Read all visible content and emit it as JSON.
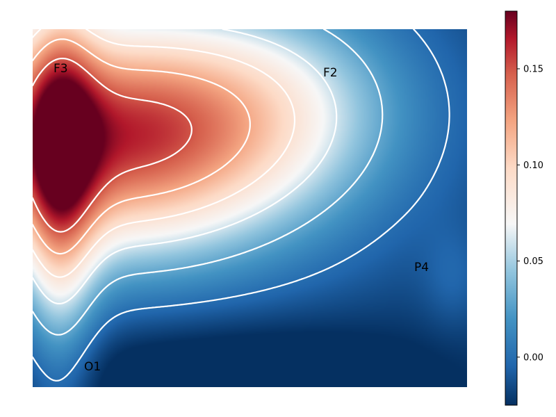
{
  "chart_data": {
    "type": "heatmap",
    "title": "",
    "xlabel": "",
    "ylabel": "",
    "colormap": "RdBu_r",
    "colors": {
      "low": "#053061",
      "mid": "#f7f7f7",
      "high": "#67001f",
      "contour": "#ffffff"
    },
    "colorbar": {
      "range": [
        -0.025,
        0.18
      ],
      "ticks": [
        0.0,
        0.05,
        0.1,
        0.15
      ],
      "tick_labels": [
        "0.00",
        "0.05",
        "0.10",
        "0.15"
      ],
      "placement": "right"
    },
    "annotations": [
      {
        "text": "F3",
        "value": 0.165
      },
      {
        "text": "F2",
        "value": 0.07
      },
      {
        "text": "P4",
        "value": 0.01
      },
      {
        "text": "O1",
        "value": -0.015
      }
    ],
    "contour_levels": [
      0.0,
      0.03,
      0.06,
      0.09,
      0.12,
      0.15
    ],
    "grid": false,
    "axes_visible": false
  }
}
